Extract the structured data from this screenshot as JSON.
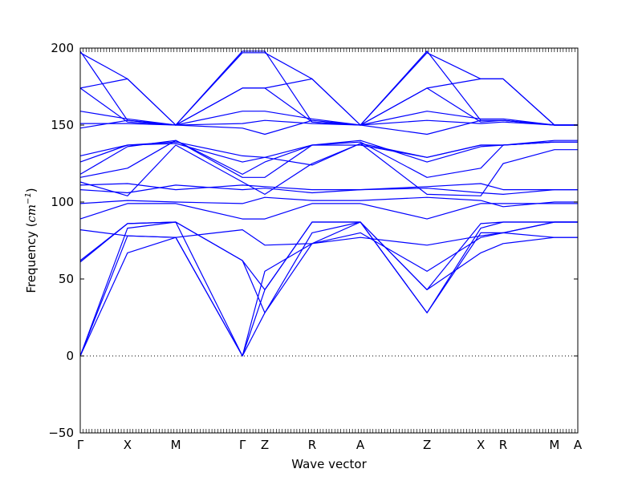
{
  "chart_data": {
    "type": "line",
    "title": "",
    "xlabel": "Wave vector",
    "ylabel": "Frequency ($cm^{-1}$)",
    "ylabel_parts": {
      "text": "Frequency (",
      "unit": "cm",
      "exp": "−1",
      "close": ")"
    },
    "ylim": [
      -50,
      200
    ],
    "yticks": [
      -50,
      0,
      50,
      100,
      150,
      200
    ],
    "ytick_labels": [
      "−50",
      "0",
      "50",
      "100",
      "150",
      "200"
    ],
    "xlim": [
      0,
      1
    ],
    "high_symmetry_points": [
      {
        "label": "Γ",
        "x": 0.0
      },
      {
        "label": "X",
        "x": 0.095
      },
      {
        "label": "M",
        "x": 0.192
      },
      {
        "label": "Γ",
        "x": 0.326
      },
      {
        "label": "Z",
        "x": 0.371
      },
      {
        "label": "R",
        "x": 0.466
      },
      {
        "label": "A",
        "x": 0.563
      },
      {
        "label": "Z",
        "x": 0.697
      },
      {
        "label": "X",
        "x": 0.805
      },
      {
        "label": "R",
        "x": 0.85
      },
      {
        "label": "M",
        "x": 0.953
      },
      {
        "label": "A",
        "x": 1.0
      }
    ],
    "zero_line": {
      "y": 0,
      "style": "dotted"
    },
    "grid": false,
    "line_color": "#0000ff",
    "series": [
      {
        "values": [
          [
            0,
            0
          ],
          [
            0.095,
            83
          ],
          [
            0.192,
            87
          ],
          [
            0.326,
            62
          ],
          [
            0.371,
            28
          ],
          [
            0.466,
            73
          ],
          [
            0.563,
            87
          ],
          [
            0.697,
            28
          ],
          [
            0.805,
            83
          ],
          [
            0.85,
            87
          ],
          [
            0.953,
            87
          ],
          [
            1,
            87
          ]
        ]
      },
      {
        "values": [
          [
            0,
            0
          ],
          [
            0.095,
            78
          ],
          [
            0.192,
            77
          ],
          [
            0.326,
            0
          ],
          [
            0.371,
            28
          ],
          [
            0.466,
            80
          ],
          [
            0.563,
            87
          ],
          [
            0.697,
            28
          ],
          [
            0.805,
            80
          ],
          [
            0.85,
            80
          ],
          [
            0.953,
            87
          ],
          [
            1,
            87
          ]
        ]
      },
      {
        "values": [
          [
            0,
            0
          ],
          [
            0.095,
            67
          ],
          [
            0.192,
            77
          ],
          [
            0.326,
            0
          ],
          [
            0.371,
            43
          ],
          [
            0.466,
            87
          ],
          [
            0.563,
            87
          ],
          [
            0.697,
            43
          ],
          [
            0.805,
            67
          ],
          [
            0.85,
            73
          ],
          [
            0.953,
            77
          ],
          [
            1,
            77
          ]
        ]
      },
      {
        "values": [
          [
            0,
            61
          ],
          [
            0.095,
            86
          ],
          [
            0.192,
            87
          ],
          [
            0.326,
            62
          ],
          [
            0.371,
            43
          ],
          [
            0.466,
            87
          ],
          [
            0.563,
            87
          ],
          [
            0.697,
            43
          ],
          [
            0.805,
            86
          ],
          [
            0.85,
            87
          ],
          [
            0.953,
            87
          ],
          [
            1,
            87
          ]
        ]
      },
      {
        "values": [
          [
            0,
            62
          ],
          [
            0.095,
            86
          ],
          [
            0.192,
            87
          ],
          [
            0.326,
            0
          ],
          [
            0.371,
            55
          ],
          [
            0.466,
            73
          ],
          [
            0.563,
            80
          ],
          [
            0.697,
            55
          ],
          [
            0.805,
            77
          ],
          [
            0.85,
            80
          ],
          [
            0.953,
            87
          ],
          [
            1,
            87
          ]
        ]
      },
      {
        "values": [
          [
            0,
            82
          ],
          [
            0.095,
            78
          ],
          [
            0.192,
            77
          ],
          [
            0.326,
            82
          ],
          [
            0.371,
            72
          ],
          [
            0.466,
            73
          ],
          [
            0.563,
            77
          ],
          [
            0.697,
            72
          ],
          [
            0.805,
            78
          ],
          [
            0.85,
            80
          ],
          [
            0.953,
            77
          ],
          [
            1,
            77
          ]
        ]
      },
      {
        "values": [
          [
            0,
            89
          ],
          [
            0.095,
            99
          ],
          [
            0.192,
            99
          ],
          [
            0.326,
            89
          ],
          [
            0.371,
            89
          ],
          [
            0.466,
            99
          ],
          [
            0.563,
            99
          ],
          [
            0.697,
            89
          ],
          [
            0.805,
            99
          ],
          [
            0.85,
            99
          ],
          [
            0.953,
            99
          ],
          [
            1,
            99
          ]
        ]
      },
      {
        "values": [
          [
            0,
            99
          ],
          [
            0.095,
            101
          ],
          [
            0.192,
            100
          ],
          [
            0.326,
            99
          ],
          [
            0.371,
            103
          ],
          [
            0.466,
            101
          ],
          [
            0.563,
            101
          ],
          [
            0.697,
            103
          ],
          [
            0.805,
            101
          ],
          [
            0.85,
            97
          ],
          [
            0.953,
            100
          ],
          [
            1,
            100
          ]
        ]
      },
      {
        "values": [
          [
            0,
            108
          ],
          [
            0.095,
            106
          ],
          [
            0.192,
            111
          ],
          [
            0.326,
            108
          ],
          [
            0.371,
            109
          ],
          [
            0.466,
            106
          ],
          [
            0.563,
            108
          ],
          [
            0.697,
            109
          ],
          [
            0.805,
            106
          ],
          [
            0.85,
            105
          ],
          [
            0.953,
            108
          ],
          [
            1,
            108
          ]
        ]
      },
      {
        "values": [
          [
            0,
            111
          ],
          [
            0.095,
            112
          ],
          [
            0.192,
            108
          ],
          [
            0.326,
            111
          ],
          [
            0.371,
            110
          ],
          [
            0.466,
            108
          ],
          [
            0.563,
            108
          ],
          [
            0.697,
            110
          ],
          [
            0.805,
            112
          ],
          [
            0.85,
            108
          ],
          [
            0.953,
            108
          ],
          [
            1,
            108
          ]
        ]
      },
      {
        "values": [
          [
            0,
            113
          ],
          [
            0.095,
            104
          ],
          [
            0.192,
            137
          ],
          [
            0.326,
            113
          ],
          [
            0.371,
            105
          ],
          [
            0.466,
            125
          ],
          [
            0.563,
            138
          ],
          [
            0.697,
            105
          ],
          [
            0.805,
            104
          ],
          [
            0.85,
            125
          ],
          [
            0.953,
            134
          ],
          [
            1,
            134
          ]
        ]
      },
      {
        "values": [
          [
            0,
            116
          ],
          [
            0.095,
            122
          ],
          [
            0.192,
            140
          ],
          [
            0.326,
            116
          ],
          [
            0.371,
            116
          ],
          [
            0.466,
            137
          ],
          [
            0.563,
            139
          ],
          [
            0.697,
            116
          ],
          [
            0.805,
            122
          ],
          [
            0.85,
            137
          ],
          [
            0.953,
            139
          ],
          [
            1,
            139
          ]
        ]
      },
      {
        "values": [
          [
            0,
            118
          ],
          [
            0.095,
            136
          ],
          [
            0.192,
            140
          ],
          [
            0.326,
            118
          ],
          [
            0.371,
            126
          ],
          [
            0.466,
            137
          ],
          [
            0.563,
            140
          ],
          [
            0.697,
            126
          ],
          [
            0.805,
            136
          ],
          [
            0.85,
            137
          ],
          [
            0.953,
            140
          ],
          [
            1,
            140
          ]
        ]
      },
      {
        "values": [
          [
            0,
            126
          ],
          [
            0.095,
            137
          ],
          [
            0.192,
            138
          ],
          [
            0.326,
            126
          ],
          [
            0.371,
            129
          ],
          [
            0.466,
            124
          ],
          [
            0.563,
            138
          ],
          [
            0.697,
            129
          ],
          [
            0.805,
            137
          ],
          [
            0.85,
            137
          ],
          [
            0.953,
            139
          ],
          [
            1,
            139
          ]
        ]
      },
      {
        "values": [
          [
            0,
            130
          ],
          [
            0.095,
            137
          ],
          [
            0.192,
            139
          ],
          [
            0.326,
            130
          ],
          [
            0.371,
            129
          ],
          [
            0.466,
            137
          ],
          [
            0.563,
            137
          ],
          [
            0.697,
            129
          ],
          [
            0.805,
            137
          ],
          [
            0.85,
            137
          ],
          [
            0.953,
            139
          ],
          [
            1,
            139
          ]
        ]
      },
      {
        "values": [
          [
            0,
            148
          ],
          [
            0.095,
            153
          ],
          [
            0.192,
            150
          ],
          [
            0.326,
            148
          ],
          [
            0.371,
            144
          ],
          [
            0.466,
            153
          ],
          [
            0.563,
            150
          ],
          [
            0.697,
            144
          ],
          [
            0.805,
            153
          ],
          [
            0.85,
            153
          ],
          [
            0.953,
            150
          ],
          [
            1,
            150
          ]
        ]
      },
      {
        "values": [
          [
            0,
            151
          ],
          [
            0.095,
            151
          ],
          [
            0.192,
            150
          ],
          [
            0.326,
            151
          ],
          [
            0.371,
            153
          ],
          [
            0.466,
            151
          ],
          [
            0.563,
            150
          ],
          [
            0.697,
            153
          ],
          [
            0.805,
            151
          ],
          [
            0.85,
            152
          ],
          [
            0.953,
            150
          ],
          [
            1,
            150
          ]
        ]
      },
      {
        "values": [
          [
            0,
            159
          ],
          [
            0.095,
            154
          ],
          [
            0.192,
            150
          ],
          [
            0.326,
            159
          ],
          [
            0.371,
            159
          ],
          [
            0.466,
            154
          ],
          [
            0.563,
            150
          ],
          [
            0.697,
            159
          ],
          [
            0.805,
            154
          ],
          [
            0.85,
            154
          ],
          [
            0.953,
            150
          ],
          [
            1,
            150
          ]
        ]
      },
      {
        "values": [
          [
            0,
            174
          ],
          [
            0.095,
            180
          ],
          [
            0.192,
            150
          ],
          [
            0.326,
            174
          ],
          [
            0.371,
            174
          ],
          [
            0.466,
            180
          ],
          [
            0.563,
            150
          ],
          [
            0.697,
            174
          ],
          [
            0.805,
            180
          ],
          [
            0.85,
            180
          ],
          [
            0.953,
            150
          ],
          [
            1,
            150
          ]
        ]
      },
      {
        "values": [
          [
            0,
            174
          ],
          [
            0.095,
            152
          ],
          [
            0.192,
            150
          ],
          [
            0.326,
            174
          ],
          [
            0.371,
            174
          ],
          [
            0.466,
            152
          ],
          [
            0.563,
            150
          ],
          [
            0.697,
            174
          ],
          [
            0.805,
            152
          ],
          [
            0.85,
            153
          ],
          [
            0.953,
            150
          ],
          [
            1,
            150
          ]
        ]
      },
      {
        "values": [
          [
            0,
            197
          ],
          [
            0.095,
            180
          ],
          [
            0.192,
            150
          ],
          [
            0.326,
            197
          ],
          [
            0.371,
            197
          ],
          [
            0.466,
            180
          ],
          [
            0.563,
            150
          ],
          [
            0.697,
            197
          ],
          [
            0.805,
            180
          ],
          [
            0.85,
            180
          ],
          [
            0.953,
            150
          ],
          [
            1,
            150
          ]
        ]
      },
      {
        "values": [
          [
            0,
            198
          ],
          [
            0.095,
            153
          ],
          [
            0.192,
            150
          ],
          [
            0.326,
            198
          ],
          [
            0.371,
            198
          ],
          [
            0.466,
            152
          ],
          [
            0.563,
            150
          ],
          [
            0.697,
            198
          ],
          [
            0.805,
            153
          ],
          [
            0.85,
            153
          ],
          [
            0.953,
            150
          ],
          [
            1,
            150
          ]
        ]
      }
    ]
  }
}
